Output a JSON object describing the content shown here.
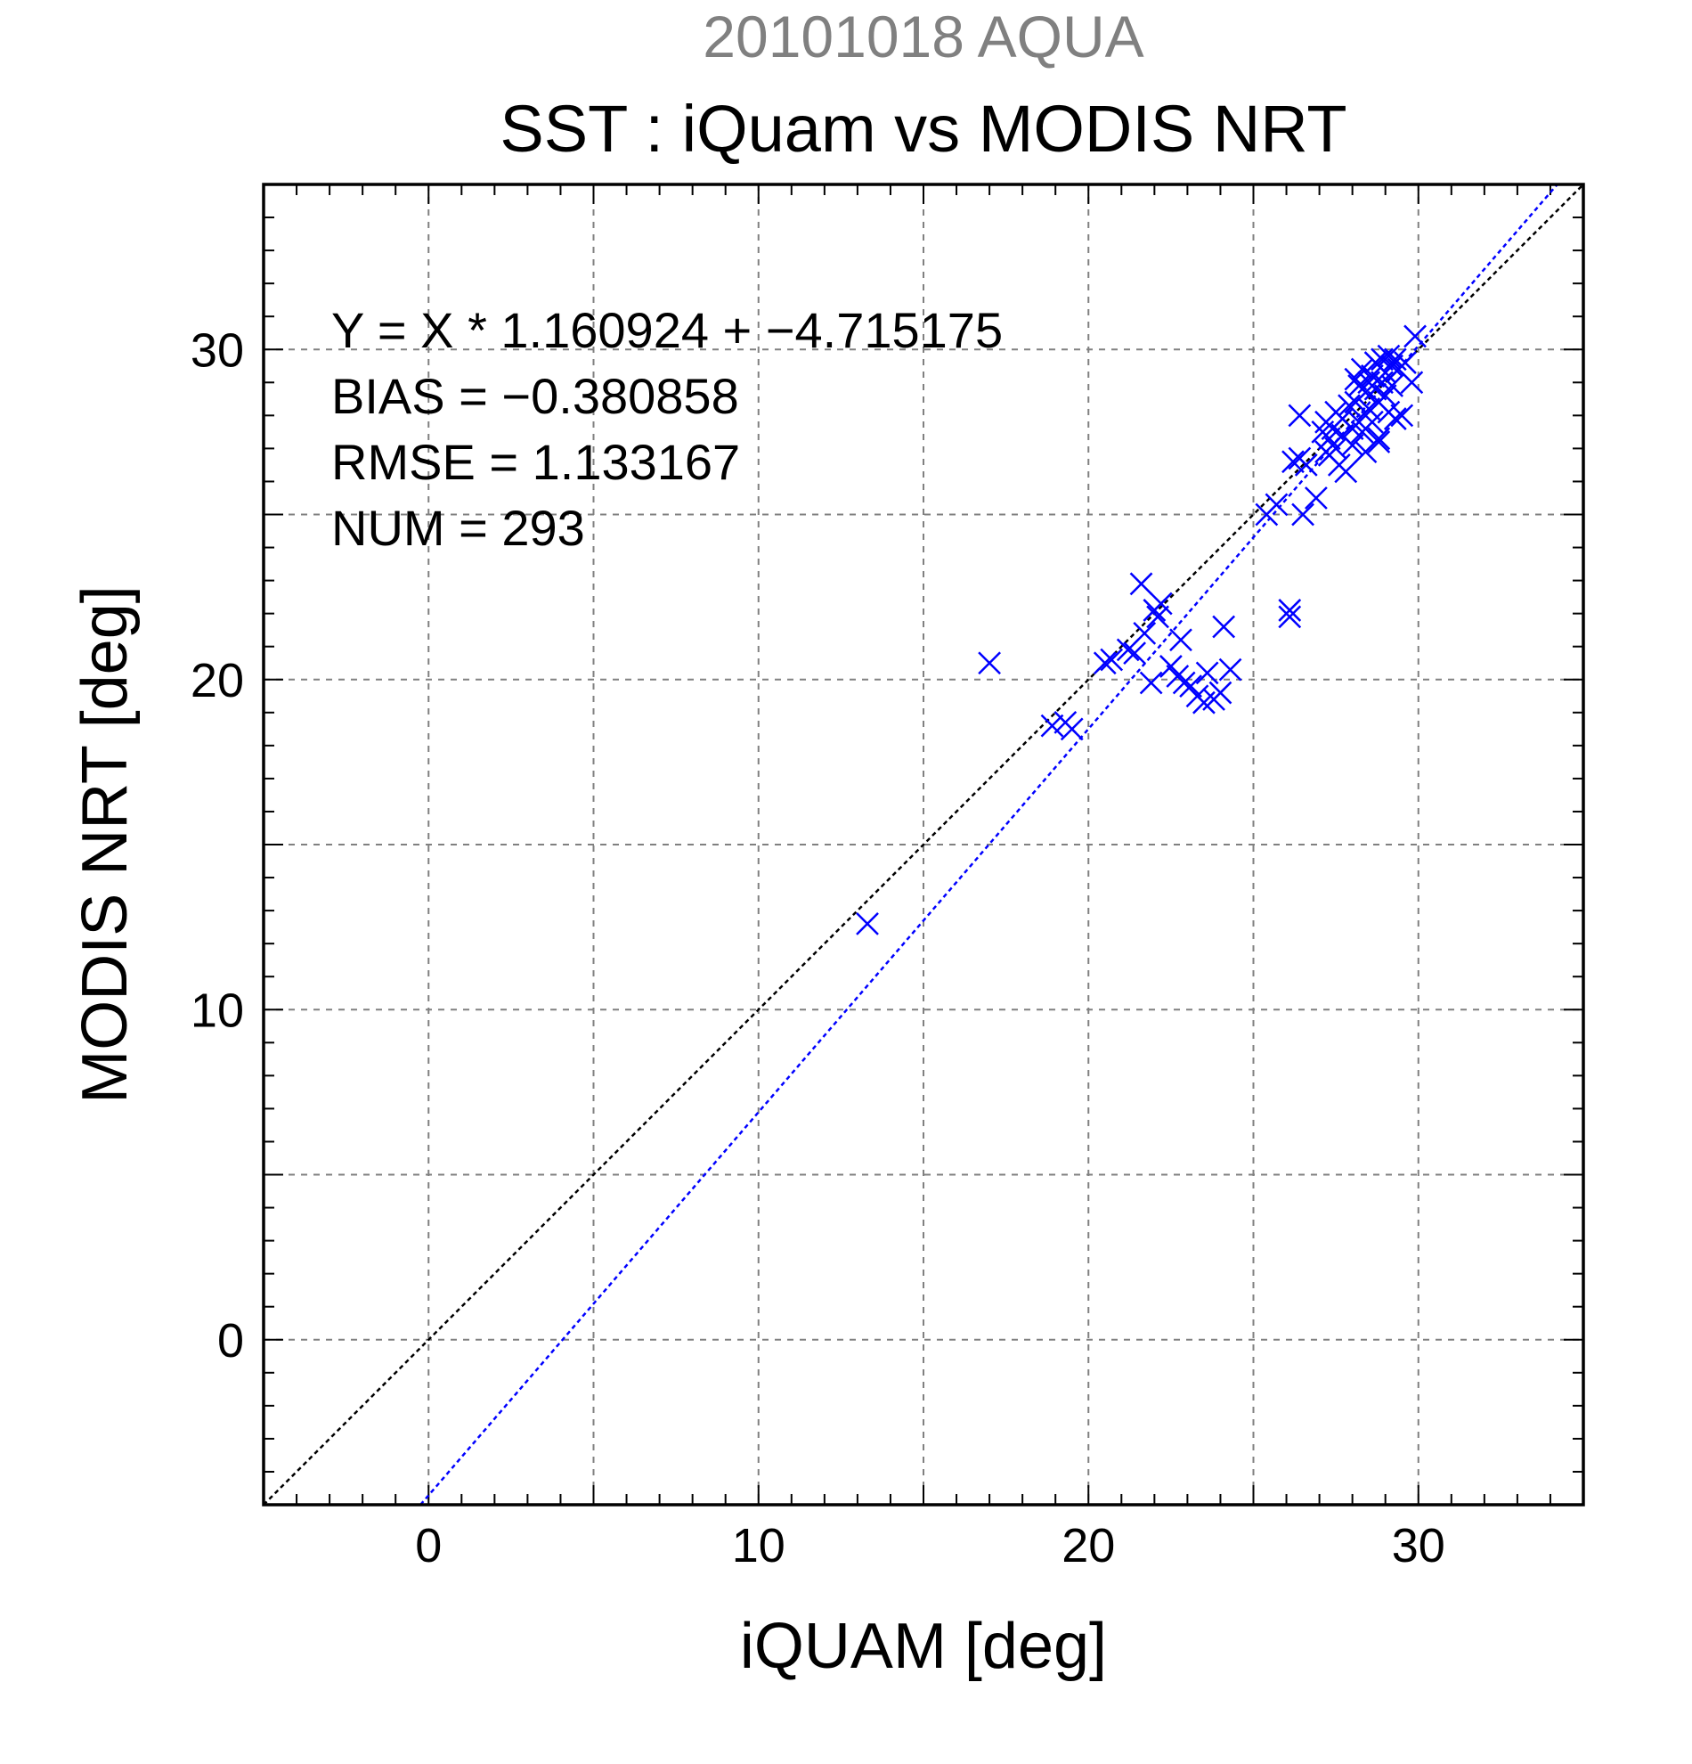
{
  "chart_data": {
    "type": "scatter",
    "supertitle": "20101018 AQUA",
    "title": "SST : iQuam vs MODIS NRT",
    "xlabel": "iQUAM [deg]",
    "ylabel": "MODIS NRT [deg]",
    "xlim": [
      -5,
      35
    ],
    "ylim": [
      -5,
      35
    ],
    "xticks": [
      0,
      10,
      20,
      30
    ],
    "yticks": [
      0,
      10,
      20,
      30
    ],
    "xtick_labels": [
      "0",
      "10",
      "20",
      "30"
    ],
    "ytick_labels": [
      "0",
      "10",
      "20",
      "30"
    ],
    "grid": true,
    "marker": "x",
    "marker_color": "#0000ff",
    "annotations": {
      "fit": "Y = X * 1.160924 + −4.715175",
      "bias": "BIAS = −0.380858",
      "rmse": "RMSE = 1.133167",
      "num": "NUM = 293"
    },
    "lines": [
      {
        "kind": "identity",
        "slope": 1,
        "intercept": 0,
        "color": "#000000"
      },
      {
        "kind": "fit",
        "slope": 1.160924,
        "intercept": -4.715175,
        "color": "#0000ff"
      }
    ],
    "series": [
      {
        "points": [
          [
            13.3,
            12.6
          ],
          [
            17.0,
            20.5
          ],
          [
            18.9,
            18.6
          ],
          [
            19.3,
            18.7
          ],
          [
            19.5,
            18.5
          ],
          [
            20.5,
            20.5
          ],
          [
            20.7,
            20.6
          ],
          [
            21.2,
            20.9
          ],
          [
            21.4,
            20.8
          ],
          [
            21.6,
            22.9
          ],
          [
            21.7,
            21.4
          ],
          [
            21.9,
            19.9
          ],
          [
            22.0,
            22.1
          ],
          [
            22.1,
            21.9
          ],
          [
            22.2,
            22.3
          ],
          [
            22.5,
            20.4
          ],
          [
            22.7,
            20.1
          ],
          [
            22.8,
            21.2
          ],
          [
            22.9,
            19.9
          ],
          [
            23.1,
            19.8
          ],
          [
            23.3,
            19.5
          ],
          [
            23.5,
            19.3
          ],
          [
            23.6,
            20.2
          ],
          [
            23.8,
            19.4
          ],
          [
            24.0,
            19.6
          ],
          [
            24.1,
            21.6
          ],
          [
            24.3,
            20.3
          ],
          [
            25.4,
            25.0
          ],
          [
            25.7,
            25.3
          ],
          [
            26.1,
            22.1
          ],
          [
            26.1,
            21.9
          ],
          [
            26.2,
            26.6
          ],
          [
            26.4,
            26.7
          ],
          [
            26.5,
            25.0
          ],
          [
            26.6,
            26.5
          ],
          [
            26.4,
            28.0
          ],
          [
            26.9,
            25.5
          ],
          [
            27.1,
            27.5
          ],
          [
            27.2,
            27.8
          ],
          [
            27.2,
            26.9
          ],
          [
            27.3,
            27.3
          ],
          [
            27.3,
            26.8
          ],
          [
            27.4,
            27.6
          ],
          [
            27.5,
            28.1
          ],
          [
            27.5,
            27.0
          ],
          [
            27.6,
            26.5
          ],
          [
            27.7,
            27.9
          ],
          [
            27.7,
            27.4
          ],
          [
            27.8,
            26.3
          ],
          [
            27.9,
            28.3
          ],
          [
            28.0,
            27.6
          ],
          [
            28.0,
            27.1
          ],
          [
            28.1,
            29.1
          ],
          [
            28.1,
            28.4
          ],
          [
            28.2,
            27.8
          ],
          [
            28.2,
            28.9
          ],
          [
            28.3,
            29.4
          ],
          [
            28.3,
            27.5
          ],
          [
            28.4,
            28.7
          ],
          [
            28.4,
            26.9
          ],
          [
            28.5,
            29.0
          ],
          [
            28.5,
            28.2
          ],
          [
            28.6,
            29.2
          ],
          [
            28.6,
            27.8
          ],
          [
            28.7,
            28.8
          ],
          [
            28.7,
            29.6
          ],
          [
            28.8,
            28.4
          ],
          [
            28.8,
            27.3
          ],
          [
            28.9,
            29.7
          ],
          [
            28.9,
            29.0
          ],
          [
            29.0,
            28.6
          ],
          [
            29.0,
            29.3
          ],
          [
            29.1,
            29.8
          ],
          [
            29.1,
            28.1
          ],
          [
            29.2,
            29.5
          ],
          [
            29.2,
            28.9
          ],
          [
            29.3,
            29.7
          ],
          [
            29.3,
            27.9
          ],
          [
            29.4,
            29.4
          ],
          [
            29.5,
            28.0
          ],
          [
            29.6,
            29.6
          ],
          [
            29.8,
            29.0
          ],
          [
            29.9,
            30.4
          ],
          [
            28.8,
            27.2
          ]
        ]
      }
    ]
  }
}
